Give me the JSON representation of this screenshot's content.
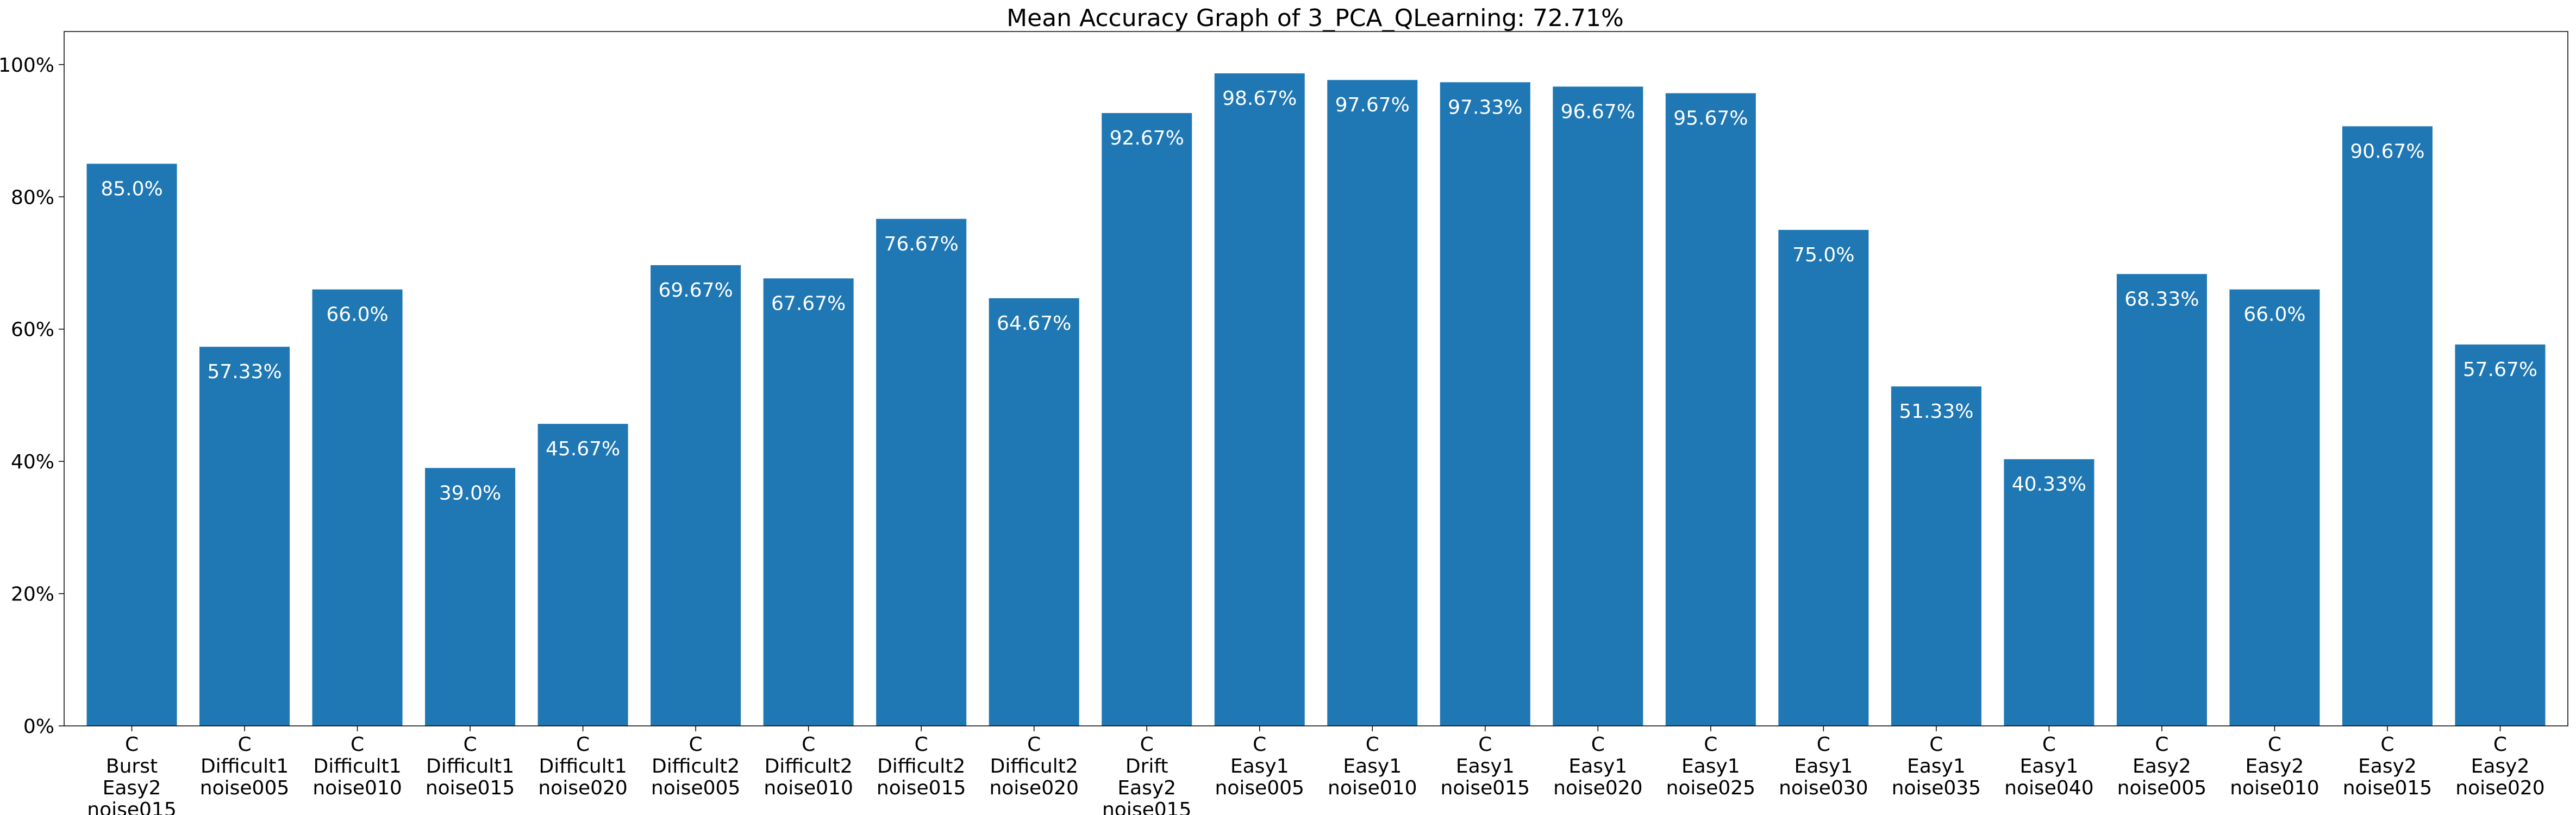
{
  "chart_data": {
    "type": "bar",
    "title": "Mean Accuracy Graph of 3_PCA_QLearning: 72.71%",
    "xlabel": "",
    "ylabel": "",
    "ylim": [
      0,
      100
    ],
    "yticks": [
      0,
      20,
      40,
      60,
      80,
      100
    ],
    "ytick_labels": [
      "0%",
      "20%",
      "40%",
      "60%",
      "80%",
      "100%"
    ],
    "bar_color": "#1f77b4",
    "grid": false,
    "categories": [
      [
        "C",
        "Burst",
        "Easy2",
        "noise015"
      ],
      [
        "C",
        "Difficult1",
        "noise005"
      ],
      [
        "C",
        "Difficult1",
        "noise010"
      ],
      [
        "C",
        "Difficult1",
        "noise015"
      ],
      [
        "C",
        "Difficult1",
        "noise020"
      ],
      [
        "C",
        "Difficult2",
        "noise005"
      ],
      [
        "C",
        "Difficult2",
        "noise010"
      ],
      [
        "C",
        "Difficult2",
        "noise015"
      ],
      [
        "C",
        "Difficult2",
        "noise020"
      ],
      [
        "C",
        "Drift",
        "Easy2",
        "noise015"
      ],
      [
        "C",
        "Easy1",
        "noise005"
      ],
      [
        "C",
        "Easy1",
        "noise010"
      ],
      [
        "C",
        "Easy1",
        "noise015"
      ],
      [
        "C",
        "Easy1",
        "noise020"
      ],
      [
        "C",
        "Easy1",
        "noise025"
      ],
      [
        "C",
        "Easy1",
        "noise030"
      ],
      [
        "C",
        "Easy1",
        "noise035"
      ],
      [
        "C",
        "Easy1",
        "noise040"
      ],
      [
        "C",
        "Easy2",
        "noise005"
      ],
      [
        "C",
        "Easy2",
        "noise010"
      ],
      [
        "C",
        "Easy2",
        "noise015"
      ],
      [
        "C",
        "Easy2",
        "noise020"
      ]
    ],
    "values": [
      85.0,
      57.33,
      66.0,
      39.0,
      45.67,
      69.67,
      67.67,
      76.67,
      64.67,
      92.67,
      98.67,
      97.67,
      97.33,
      96.67,
      95.67,
      75.0,
      51.33,
      40.33,
      68.33,
      66.0,
      90.67,
      57.67
    ],
    "data_labels": [
      "85.0%",
      "57.33%",
      "66.0%",
      "39.0%",
      "45.67%",
      "69.67%",
      "67.67%",
      "76.67%",
      "64.67%",
      "92.67%",
      "98.67%",
      "97.67%",
      "97.33%",
      "96.67%",
      "95.67%",
      "75.0%",
      "51.33%",
      "40.33%",
      "68.33%",
      "66.0%",
      "90.67%",
      "57.67%"
    ]
  }
}
